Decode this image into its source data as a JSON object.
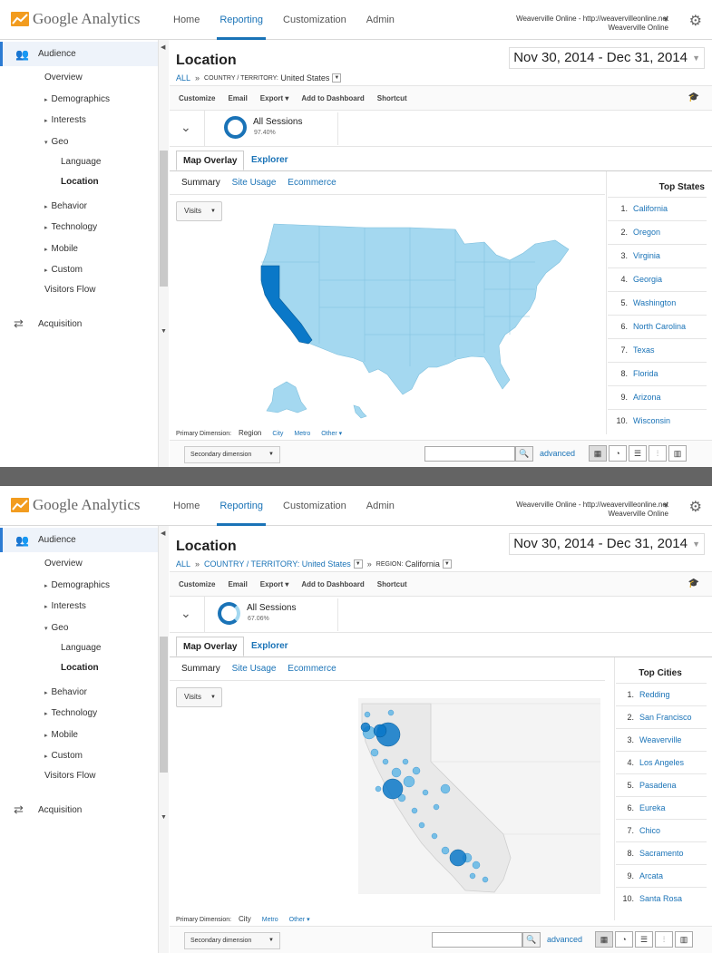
{
  "app": {
    "logo_text": "Google Analytics",
    "nav": [
      "Home",
      "Reporting",
      "Customization",
      "Admin"
    ],
    "account_line1": "Weaverville Online - http://weavervilleonline.net",
    "account_line2": "Weaverville Online"
  },
  "sidebar": {
    "audience": "Audience",
    "items": [
      "Overview",
      "Demographics",
      "Interests",
      "Geo",
      "Language",
      "Location",
      "Behavior",
      "Technology",
      "Mobile",
      "Custom",
      "Visitors Flow"
    ],
    "acquisition": "Acquisition"
  },
  "report": {
    "title": "Location",
    "breadcrumb_all": "ALL",
    "country_label": "COUNTRY / TERRITORY:",
    "country_value": "United States",
    "region_label": "REGION:",
    "region_value": "California",
    "daterange": "Nov 30, 2014 - Dec 31, 2014",
    "toolbar": [
      "Customize",
      "Email",
      "Export",
      "Add to Dashboard",
      "Shortcut"
    ],
    "segment_name": "All Sessions",
    "tabs": [
      "Map Overlay",
      "Explorer"
    ],
    "subtabs": [
      "Summary",
      "Site Usage",
      "Ecommerce"
    ],
    "visits_select": "Visits",
    "primary_dimension_label": "Primary Dimension:",
    "secondary_dimension": "Secondary dimension",
    "advanced": "advanced"
  },
  "panel1": {
    "segment_pct": "97.40%",
    "top_title": "Top States",
    "top_items": [
      "California",
      "Oregon",
      "Virginia",
      "Georgia",
      "Washington",
      "North Carolina",
      "Texas",
      "Florida",
      "Arizona",
      "Wisconsin"
    ],
    "primary_current": "Region",
    "primary_links": [
      "City",
      "Metro",
      "Other"
    ]
  },
  "panel2": {
    "segment_pct": "67.06%",
    "top_title": "Top Cities",
    "top_items": [
      "Redding",
      "San Francisco",
      "Weaverville",
      "Los Angeles",
      "Pasadena",
      "Eureka",
      "Chico",
      "Sacramento",
      "Arcata",
      "Santa Rosa"
    ],
    "primary_current": "City",
    "primary_links": [
      "Metro",
      "Other"
    ]
  },
  "colors": {
    "accent": "#1a73b7",
    "map_light": "#a4d8f0",
    "map_dark": "#0a78c8",
    "divider": "#646464"
  }
}
